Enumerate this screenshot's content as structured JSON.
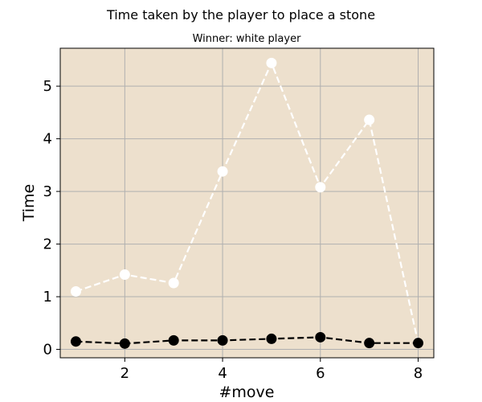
{
  "figure": {
    "suptitle": "Time taken by the player to place a stone"
  },
  "chart_data": {
    "type": "line",
    "title": "Winner: white player",
    "xlabel": "#move",
    "ylabel": "Time",
    "xlim": [
      0.68,
      8.32
    ],
    "ylim": [
      -0.16,
      5.72
    ],
    "x_ticks": [
      2,
      4,
      6,
      8
    ],
    "y_ticks": [
      0,
      1,
      2,
      3,
      4,
      5
    ],
    "grid": true,
    "plot_background": "#ede0cd",
    "grid_color": "#b0b0b0",
    "series": [
      {
        "color": "#ffffff",
        "linestyle": "dashed",
        "marker": "circle",
        "x": [
          1,
          2,
          3,
          4,
          5,
          6,
          7,
          8
        ],
        "y": [
          1.1,
          1.42,
          1.26,
          3.38,
          5.44,
          3.08,
          4.36,
          0.12
        ]
      },
      {
        "color": "#000000",
        "linestyle": "dashed",
        "marker": "circle",
        "x": [
          1,
          2,
          3,
          4,
          5,
          6,
          7,
          8
        ],
        "y": [
          0.15,
          0.11,
          0.17,
          0.17,
          0.2,
          0.23,
          0.12,
          0.12
        ]
      }
    ]
  }
}
